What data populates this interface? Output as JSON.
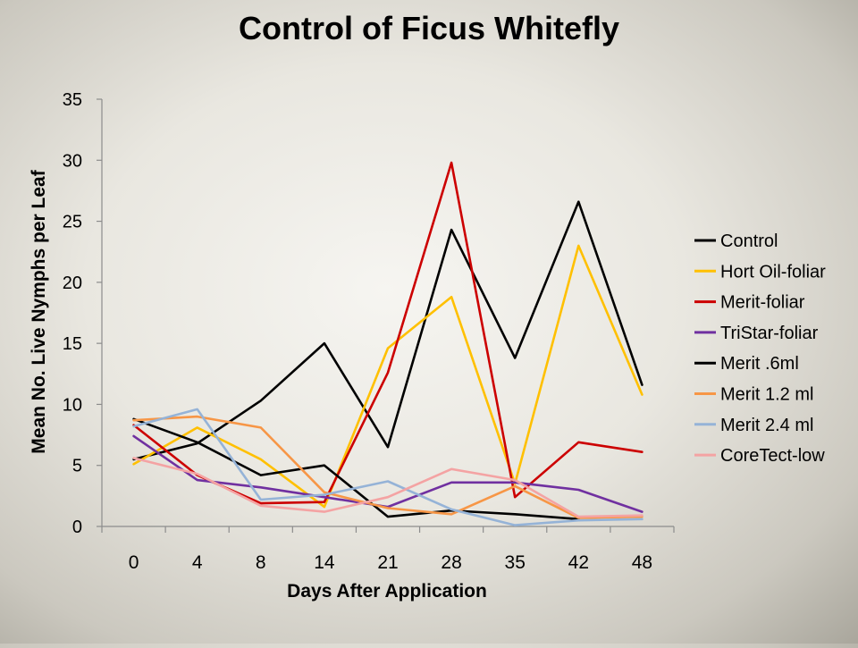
{
  "chart_data": {
    "type": "line",
    "title": "Control of Ficus Whitefly",
    "xlabel": "Days After Application",
    "ylabel": "Mean No. Live Nymphs per Leaf",
    "categories": [
      "0",
      "4",
      "8",
      "14",
      "21",
      "28",
      "35",
      "42",
      "48"
    ],
    "yticks": [
      "0",
      "5",
      "10",
      "15",
      "20",
      "25",
      "30",
      "35"
    ],
    "ylim": [
      0,
      35
    ],
    "grid": false,
    "legend_position": "right",
    "series": [
      {
        "name": "Control",
        "color": "#000000",
        "values": [
          5.5,
          6.8,
          10.3,
          15.0,
          6.5,
          24.3,
          13.8,
          26.6,
          11.6
        ]
      },
      {
        "name": "Hort Oil-foliar",
        "color": "#ffc000",
        "values": [
          5.1,
          8.1,
          5.5,
          1.6,
          14.6,
          18.8,
          3.5,
          23.0,
          10.8
        ]
      },
      {
        "name": "Merit-foliar",
        "color": "#cc0000",
        "values": [
          8.3,
          4.2,
          1.9,
          2.0,
          12.6,
          29.8,
          2.4,
          6.9,
          6.1
        ]
      },
      {
        "name": "TriStar-foliar",
        "color": "#7030a0",
        "values": [
          7.4,
          3.8,
          3.2,
          2.4,
          1.6,
          3.6,
          3.6,
          3.0,
          1.2
        ]
      },
      {
        "name": "Merit .6ml",
        "color": "#000000",
        "values": [
          8.8,
          6.9,
          4.2,
          5.0,
          0.8,
          1.3,
          1.0,
          0.6,
          null
        ]
      },
      {
        "name": "Merit 1.2 ml",
        "color": "#f79646",
        "values": [
          8.7,
          9.0,
          8.1,
          2.8,
          1.5,
          1.0,
          3.3,
          0.7,
          0.8
        ]
      },
      {
        "name": "Merit 2.4 ml",
        "color": "#95b3d7",
        "values": [
          8.2,
          9.6,
          2.2,
          2.6,
          3.7,
          1.4,
          0.1,
          0.5,
          0.6
        ]
      },
      {
        "name": "CoreTect-low",
        "color": "#f4a3a3",
        "values": [
          5.6,
          4.3,
          1.7,
          1.2,
          2.4,
          4.7,
          3.8,
          0.8,
          0.9
        ]
      }
    ]
  }
}
